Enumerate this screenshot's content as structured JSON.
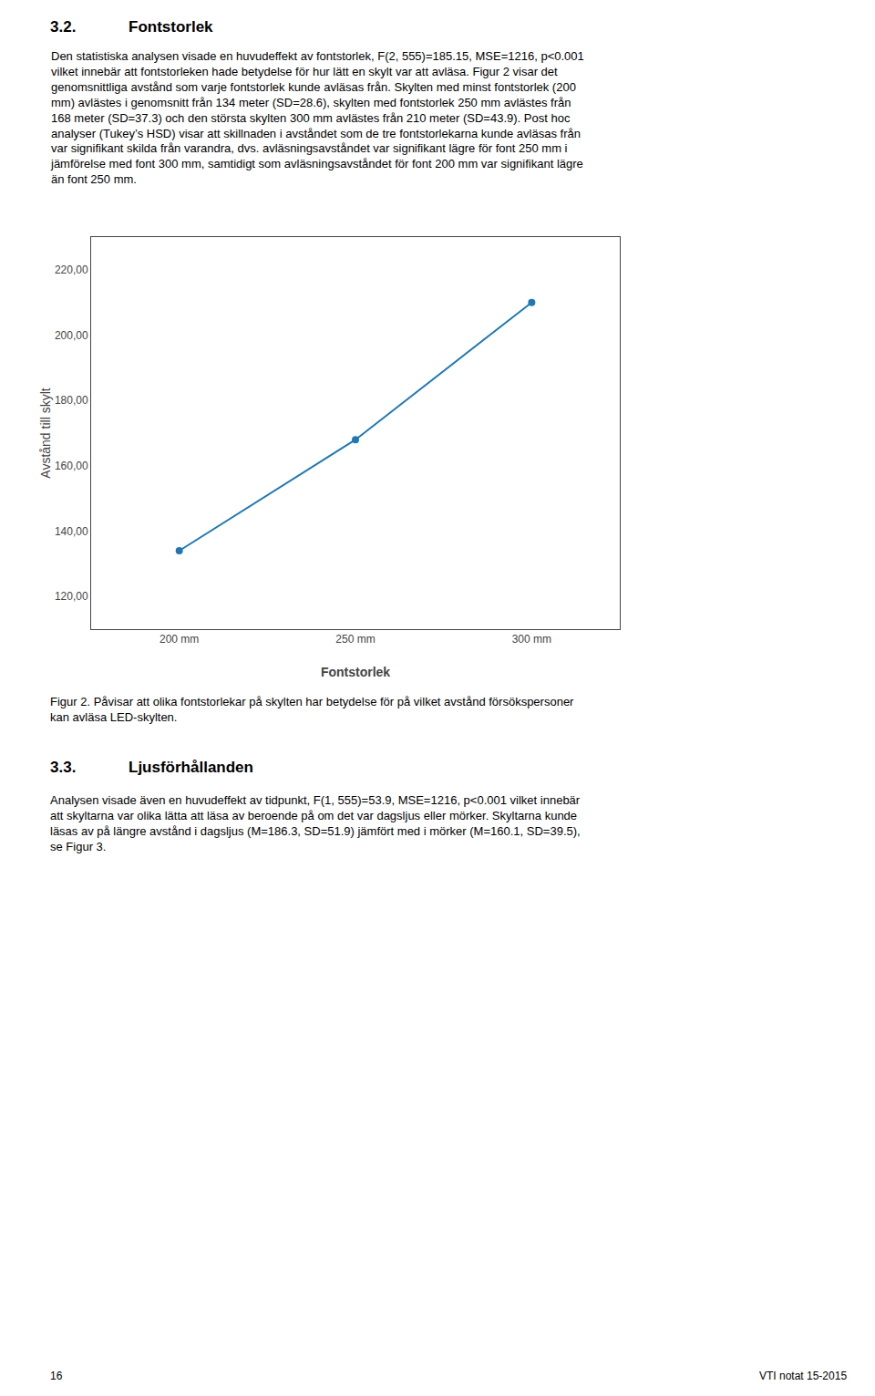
{
  "chart_data": {
    "type": "line",
    "xlabel": "Fontstorlek",
    "ylabel": "Avstånd till skylt",
    "categories": [
      "200 mm",
      "250 mm",
      "300 mm"
    ],
    "values": [
      134.0,
      168.0,
      210.0
    ],
    "marker": "circle",
    "ylim": [
      110.0,
      230.0
    ],
    "yticks": [
      {
        "value": 120.0,
        "label": "120,00"
      },
      {
        "value": 140.0,
        "label": "140,00"
      },
      {
        "value": 160.0,
        "label": "160,00"
      },
      {
        "value": 180.0,
        "label": "180,00"
      },
      {
        "value": 200.0,
        "label": "200,00"
      },
      {
        "value": 220.0,
        "label": "220,00"
      }
    ],
    "grid": false,
    "annotations": [
      "3.2.",
      "Fontstorlek",
      "Den statistiska analysen visade en huvudeffekt av fontstorlek, F(2, 555)=185.15, MSE=1216, p<0.001\nvilket innebär att fontstorleken hade betydelse för hur lätt en skylt var att avläsa. Figur 2 visar det\ngenomsnittliga avstånd som varje fontstorlek kunde avläsas från. Skylten med minst fontstorlek (200\nmm) avlästes i genomsnitt från 134 meter (SD=28.6), skylten med fontstorlek 250 mm avlästes från\n168 meter (SD=37.3) och den största skylten 300 mm avlästes från 210 meter (SD=43.9). Post hoc\nanalyser (Tukey’s HSD) visar att skillnaden i avståndet som de tre fontstorlekarna kunde avläsas från\nvar signifikant skilda från varandra, dvs. avläsningsavståndet var signifikant lägre för font 250 mm i\njämförelse med font 300 mm, samtidigt som avläsningsavståndet för font 200 mm var signifikant lägre\nän font 250 mm.",
      "Figur 2. Påvisar att olika fontstorlekar på skylten har betydelse för på vilket avstånd försökspersoner\nkan avläsa LED-skylten.",
      "3.3.",
      "Ljusförhållanden",
      "Analysen visade även en huvudeffekt av tidpunkt, F(1, 555)=53.9, MSE=1216, p<0.001 vilket innebär\natt skyltarna var olika lätta att läsa av beroende på om det var dagsljus eller mörker. Skyltarna kunde\nläsas av på längre avstånd i dagsljus (M=186.3, SD=51.9) jämfört med i mörker (M=160.1, SD=39.5),\nse Figur 3.",
      "16",
      "VTI notat 15-2015"
    ]
  }
}
